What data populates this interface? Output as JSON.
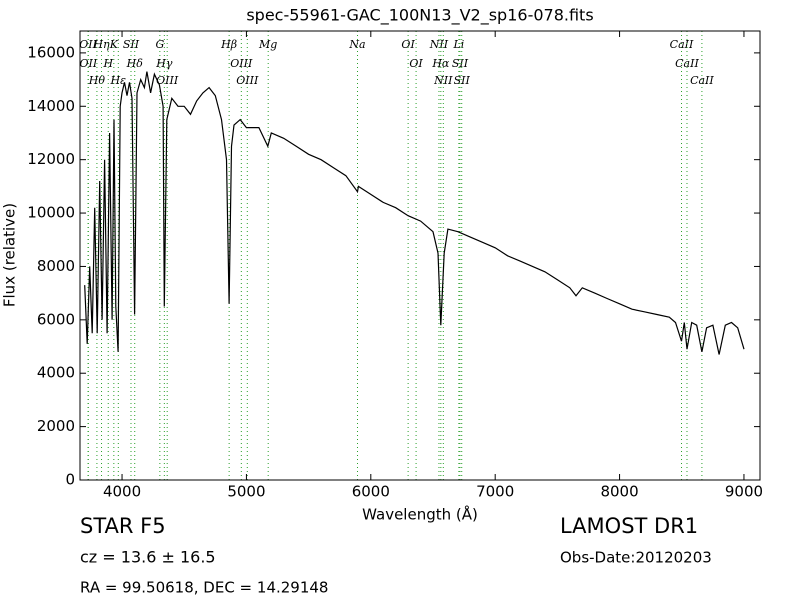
{
  "chart_data": {
    "type": "line",
    "title": "spec-55961-GAC_100N13_V2_sp16-078.fits",
    "xlabel": "Wavelength (Å)",
    "ylabel": "Flux (relative)",
    "color": "#000000",
    "marker_color": "#2ca02c",
    "xlim": [
      3662,
      9129
    ],
    "ylim": [
      0,
      16820
    ],
    "xticks": [
      4000,
      5000,
      6000,
      7000,
      8000,
      9000
    ],
    "yticks": [
      0,
      2000,
      4000,
      6000,
      8000,
      10000,
      12000,
      14000,
      16000
    ],
    "x": [
      3700,
      3720,
      3740,
      3760,
      3780,
      3800,
      3820,
      3840,
      3860,
      3880,
      3900,
      3920,
      3935,
      3950,
      3968,
      3985,
      4000,
      4020,
      4040,
      4060,
      4080,
      4101,
      4120,
      4150,
      4180,
      4200,
      4230,
      4260,
      4300,
      4330,
      4340,
      4360,
      4400,
      4450,
      4500,
      4550,
      4600,
      4650,
      4700,
      4750,
      4800,
      4840,
      4861,
      4880,
      4900,
      4950,
      5000,
      5100,
      5172,
      5200,
      5300,
      5400,
      5500,
      5600,
      5700,
      5800,
      5893,
      5900,
      6000,
      6100,
      6200,
      6300,
      6400,
      6500,
      6540,
      6563,
      6590,
      6620,
      6700,
      6800,
      6900,
      7000,
      7100,
      7200,
      7300,
      7400,
      7500,
      7600,
      7650,
      7700,
      7800,
      7900,
      8000,
      8100,
      8200,
      8300,
      8400,
      8450,
      8498,
      8520,
      8542,
      8580,
      8620,
      8662,
      8700,
      8750,
      8800,
      8850,
      8900,
      8950,
      9000
    ],
    "values": [
      7300,
      5100,
      8000,
      5500,
      10200,
      5500,
      11200,
      6000,
      12000,
      5500,
      13000,
      6000,
      13500,
      6500,
      4800,
      14000,
      14500,
      14900,
      14400,
      14900,
      14300,
      6200,
      14500,
      15000,
      14700,
      15300,
      14500,
      15200,
      14800,
      14000,
      6500,
      13500,
      14300,
      14000,
      14000,
      13700,
      14200,
      14500,
      14700,
      14400,
      13500,
      12000,
      6600,
      12500,
      13300,
      13500,
      13200,
      13200,
      12500,
      13000,
      12800,
      12500,
      12200,
      12000,
      11700,
      11400,
      10800,
      11000,
      10700,
      10400,
      10200,
      9900,
      9700,
      9300,
      8500,
      5800,
      8500,
      9400,
      9300,
      9100,
      8900,
      8700,
      8400,
      8200,
      8000,
      7800,
      7500,
      7200,
      6900,
      7200,
      7000,
      6800,
      6600,
      6400,
      6300,
      6200,
      6100,
      5900,
      5200,
      5900,
      4900,
      5900,
      5800,
      4800,
      5700,
      5800,
      4700,
      5800,
      5900,
      5700,
      4900
    ],
    "annotations": [
      {
        "x": 3727,
        "label": "OII"
      },
      {
        "x": 3729,
        "label": "OII"
      },
      {
        "x": 3798,
        "label": "Hθ"
      },
      {
        "x": 3835,
        "label": "Hη"
      },
      {
        "x": 3889,
        "label": "H"
      },
      {
        "x": 3934,
        "label": "K"
      },
      {
        "x": 3970,
        "label": "Hε"
      },
      {
        "x": 4072,
        "label": "SII"
      },
      {
        "x": 4102,
        "label": "Hδ"
      },
      {
        "x": 4304,
        "label": "G"
      },
      {
        "x": 4340,
        "label": "Hγ"
      },
      {
        "x": 4363,
        "label": "OIII"
      },
      {
        "x": 4861,
        "label": "Hβ"
      },
      {
        "x": 4959,
        "label": "OIII"
      },
      {
        "x": 5007,
        "label": "OIII"
      },
      {
        "x": 5175,
        "label": "Mg"
      },
      {
        "x": 5893,
        "label": "Na"
      },
      {
        "x": 6300,
        "label": "OI"
      },
      {
        "x": 6364,
        "label": "OI"
      },
      {
        "x": 6548,
        "label": "NII"
      },
      {
        "x": 6563,
        "label": "Hα"
      },
      {
        "x": 6583,
        "label": "NII"
      },
      {
        "x": 6708,
        "label": "Li"
      },
      {
        "x": 6717,
        "label": "SII"
      },
      {
        "x": 6731,
        "label": "SII"
      },
      {
        "x": 8498,
        "label": "CaII"
      },
      {
        "x": 8542,
        "label": "CaII"
      },
      {
        "x": 8662,
        "label": "CaII"
      }
    ],
    "info": {
      "object": "STAR   F5",
      "cz": "cz = 13.6  ± 16.5",
      "coords": "RA = 99.50618, DEC = 14.29148",
      "survey": "LAMOST DR1",
      "date": "Obs-Date:20120203"
    }
  }
}
